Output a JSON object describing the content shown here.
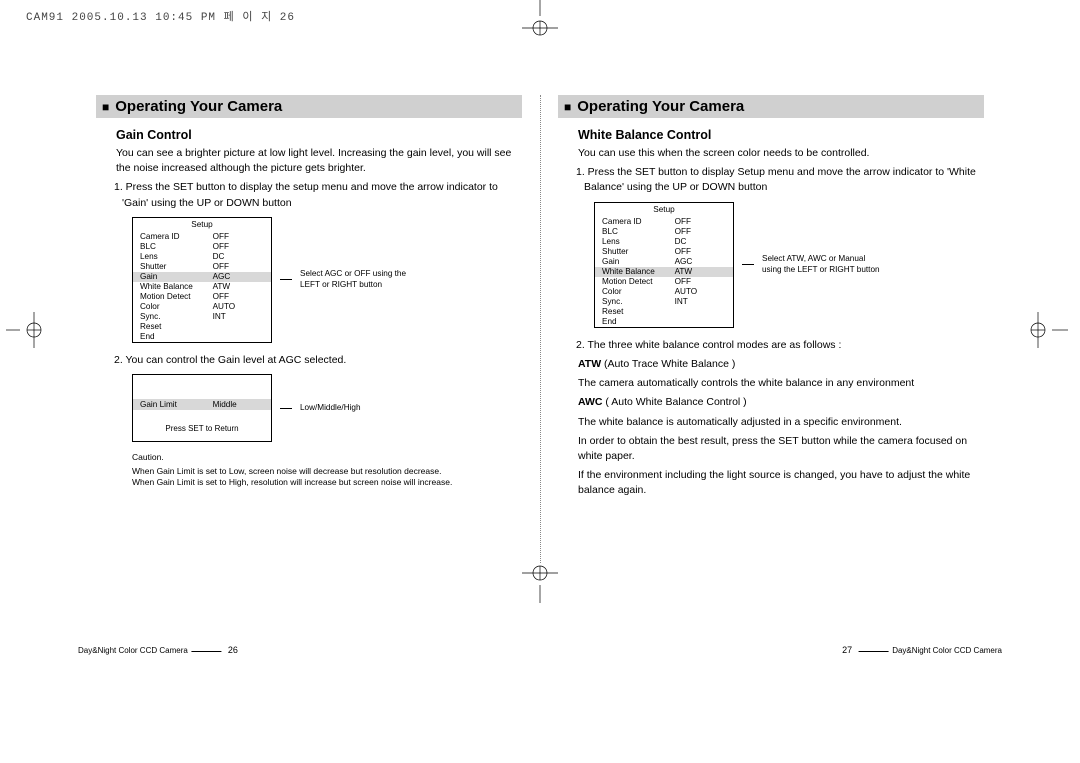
{
  "print_header": "CAM91  2005.10.13 10:45 PM  페 이 지 26",
  "left": {
    "section_title": "Operating Your Camera",
    "sub_title": "Gain Control",
    "intro": "You can see a brighter picture at low light level. Increasing the gain level, you will see the noise increased although the picture gets brighter.",
    "step1": "1. Press the SET button to display the setup menu and move the arrow indicator to 'Gain' using the UP or DOWN button",
    "setup_title": "Setup",
    "rows": [
      {
        "k": "Camera ID",
        "v": "OFF",
        "hl": false
      },
      {
        "k": "BLC",
        "v": "OFF",
        "hl": false
      },
      {
        "k": "Lens",
        "v": "DC",
        "hl": false
      },
      {
        "k": "Shutter",
        "v": "OFF",
        "hl": false
      },
      {
        "k": "Gain",
        "v": "AGC",
        "hl": true
      },
      {
        "k": "White Balance",
        "v": "ATW",
        "hl": false
      },
      {
        "k": "Motion Detect",
        "v": "OFF",
        "hl": false
      },
      {
        "k": "Color",
        "v": "AUTO",
        "hl": false
      },
      {
        "k": "Sync.",
        "v": "INT",
        "hl": false
      }
    ],
    "rows_tail": [
      "Reset",
      "End"
    ],
    "note1": "Select AGC or OFF using the LEFT or RIGHT button",
    "step2": "2. You can control the Gain level at AGC selected.",
    "gain_box": {
      "k": "Gain Limit",
      "v": "Middle",
      "press": "Press SET to Return"
    },
    "note2": "Low/Middle/High",
    "caution_title": "Caution.",
    "caution1": "When Gain Limit is set to Low, screen noise will decrease but resolution decrease.",
    "caution2": "When Gain Limit is set to High, resolution will increase but screen noise will increase.",
    "footer_label": "Day&Night Color CCD Camera",
    "page_num": "26"
  },
  "right": {
    "section_title": "Operating Your Camera",
    "sub_title": "White Balance Control",
    "intro": "You can use this when the screen color needs to be controlled.",
    "step1": "1. Press the SET button to display Setup menu and move the arrow indicator to 'White Balance' using the UP or DOWN button",
    "setup_title": "Setup",
    "rows": [
      {
        "k": "Camera ID",
        "v": "OFF",
        "hl": false
      },
      {
        "k": "BLC",
        "v": "OFF",
        "hl": false
      },
      {
        "k": "Lens",
        "v": "DC",
        "hl": false
      },
      {
        "k": "Shutter",
        "v": "OFF",
        "hl": false
      },
      {
        "k": "Gain",
        "v": "AGC",
        "hl": false
      },
      {
        "k": "White Balance",
        "v": "ATW",
        "hl": true
      },
      {
        "k": "Motion Detect",
        "v": "OFF",
        "hl": false
      },
      {
        "k": "Color",
        "v": "AUTO",
        "hl": false
      },
      {
        "k": "Sync.",
        "v": "INT",
        "hl": false
      }
    ],
    "rows_tail": [
      "Reset",
      "End"
    ],
    "note1": "Select ATW, AWC or Manual using the LEFT or RIGHT button",
    "step2": "2. The three white balance control modes are as follows :",
    "atw_bold": "ATW",
    "atw_paren": " (Auto Trace White Balance )",
    "atw_desc": "The camera automatically controls the white balance in any environment",
    "awc_bold": "AWC",
    "awc_paren": " ( Auto White Balance Control )",
    "awc_desc1": "The white balance is automatically adjusted in a specific environment.",
    "awc_desc2": "In order to obtain the best result, press the SET button while the camera focused on white paper.",
    "awc_desc3": "If the environment including the light source is changed, you have to adjust the white balance again.",
    "footer_label": "Day&Night Color CCD Camera",
    "page_num": "27"
  }
}
